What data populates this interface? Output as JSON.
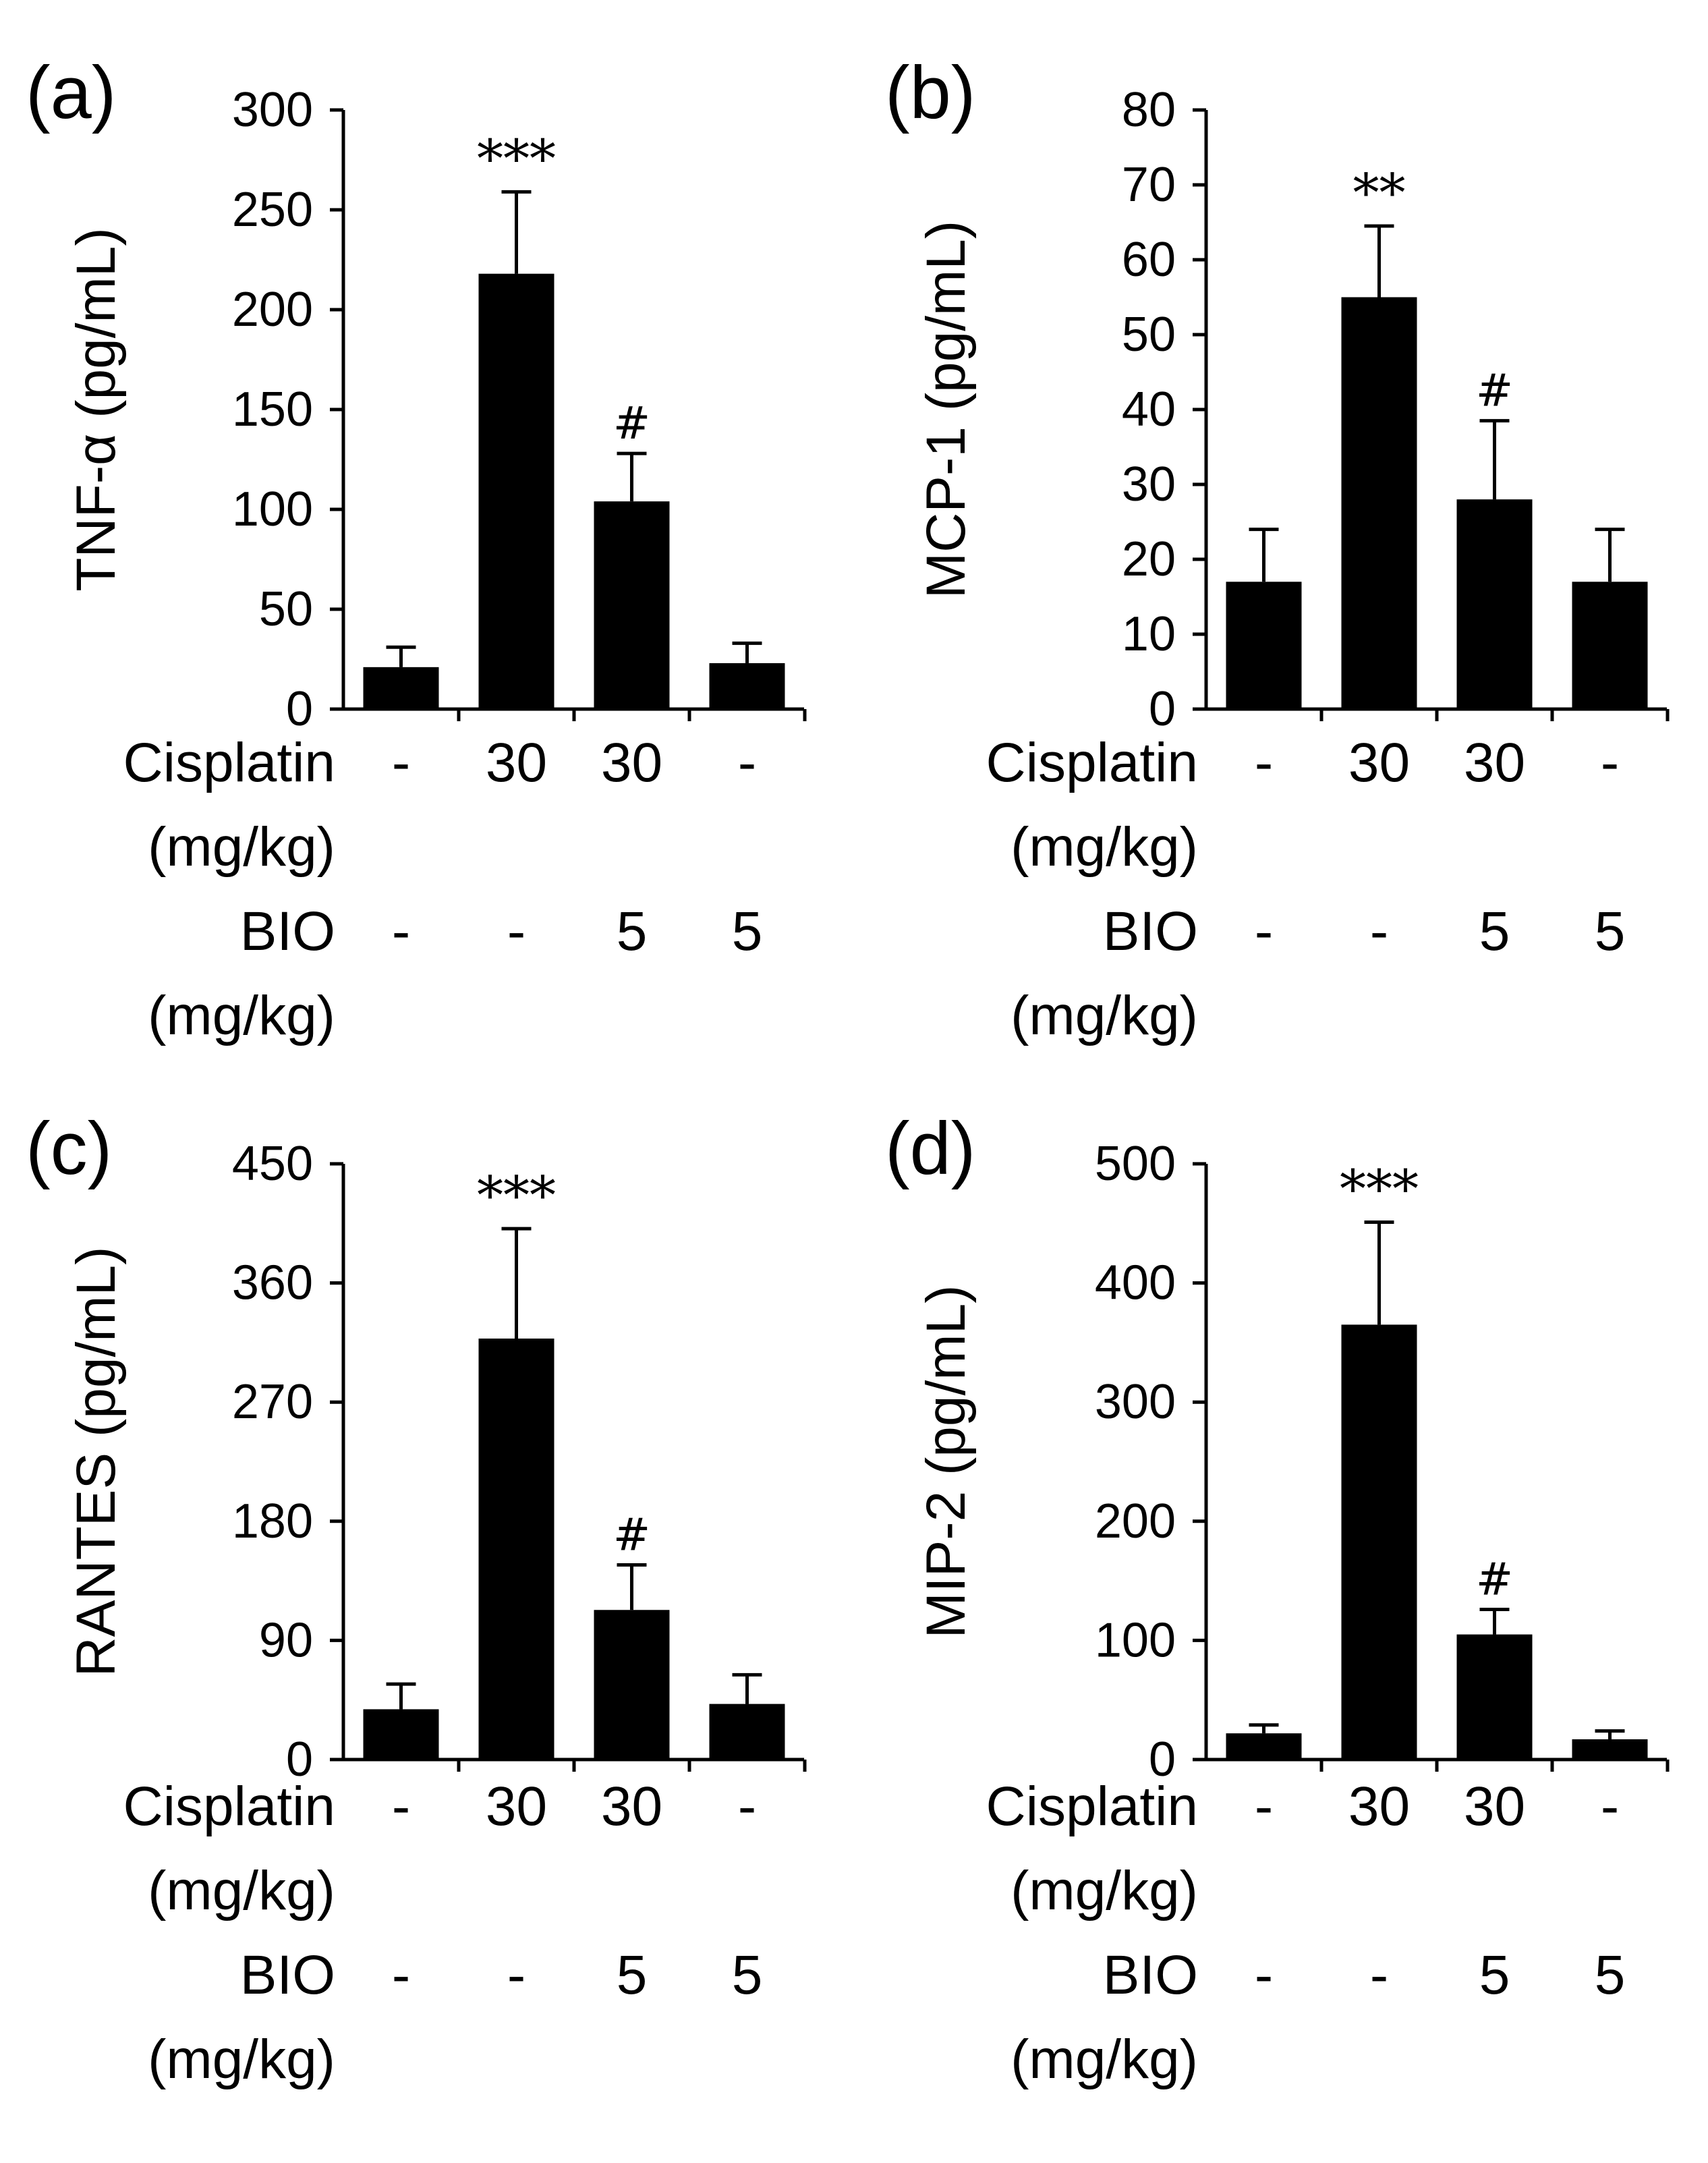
{
  "chart_data": [
    {
      "type": "bar",
      "panel_label": "(a)",
      "ylabel": "TNF-α (pg/mL)",
      "ylim": [
        0,
        300
      ],
      "yticks": [
        "0",
        "50",
        "100",
        "150",
        "200",
        "250",
        "300"
      ],
      "tick_values": [
        0,
        50,
        100,
        150,
        200,
        250,
        300
      ],
      "values": [
        21,
        218,
        104,
        23
      ],
      "errors": [
        10,
        41,
        24,
        10
      ],
      "annotations": [
        "",
        "***",
        "#",
        ""
      ],
      "cisplatin": {
        "label": "Cisplatin",
        "unit": "(mg/kg)",
        "values": [
          "-",
          "30",
          "30",
          "-"
        ]
      },
      "bio": {
        "label": "BIO",
        "unit": "(mg/kg)",
        "values": [
          "-",
          "-",
          "5",
          "5"
        ]
      }
    },
    {
      "type": "bar",
      "panel_label": "(b)",
      "ylabel": "MCP-1 (pg/mL)",
      "ylim": [
        0,
        80
      ],
      "yticks": [
        "0",
        "10",
        "20",
        "30",
        "40",
        "50",
        "60",
        "70",
        "80"
      ],
      "tick_values": [
        0,
        10,
        20,
        30,
        40,
        50,
        60,
        70,
        80
      ],
      "values": [
        17,
        55,
        28,
        17
      ],
      "errors": [
        7,
        9.5,
        10.5,
        7
      ],
      "annotations": [
        "",
        "**",
        "#",
        ""
      ],
      "cisplatin": {
        "label": "Cisplatin",
        "unit": "(mg/kg)",
        "values": [
          "-",
          "30",
          "30",
          "-"
        ]
      },
      "bio": {
        "label": "BIO",
        "unit": "(mg/kg)",
        "values": [
          "-",
          "-",
          "5",
          "5"
        ]
      }
    },
    {
      "type": "bar",
      "panel_label": "(c)",
      "ylabel": "RANTES (pg/mL)",
      "ylim": [
        0,
        450
      ],
      "yticks": [
        "0",
        "90",
        "180",
        "270",
        "360",
        "450"
      ],
      "tick_values": [
        0,
        90,
        180,
        270,
        360,
        450
      ],
      "values": [
        38,
        318,
        113,
        42
      ],
      "errors": [
        19,
        83,
        34,
        22
      ],
      "annotations": [
        "",
        "***",
        "#",
        ""
      ],
      "cisplatin": {
        "label": "Cisplatin",
        "unit": "(mg/kg)",
        "values": [
          "-",
          "30",
          "30",
          "-"
        ]
      },
      "bio": {
        "label": "BIO",
        "unit": "(mg/kg)",
        "values": [
          "-",
          "-",
          "5",
          "5"
        ]
      }
    },
    {
      "type": "bar",
      "panel_label": "(d)",
      "ylabel": "MIP-2 (pg/mL)",
      "ylim": [
        0,
        500
      ],
      "yticks": [
        "0",
        "100",
        "200",
        "300",
        "400",
        "500"
      ],
      "tick_values": [
        0,
        100,
        200,
        300,
        400,
        500
      ],
      "values": [
        22,
        365,
        105,
        17
      ],
      "errors": [
        7,
        86,
        21,
        7
      ],
      "annotations": [
        "",
        "***",
        "#",
        ""
      ],
      "cisplatin": {
        "label": "Cisplatin",
        "unit": "(mg/kg)",
        "values": [
          "-",
          "30",
          "30",
          "-"
        ]
      },
      "bio": {
        "label": "BIO",
        "unit": "(mg/kg)",
        "values": [
          "-",
          "-",
          "5",
          "5"
        ]
      }
    }
  ]
}
